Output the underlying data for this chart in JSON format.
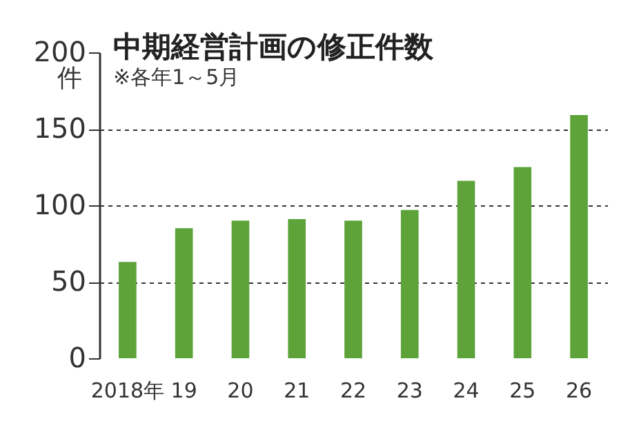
{
  "chart_data": {
    "type": "bar",
    "title": "中期経営計画の修正件数",
    "annotations": [
      "※各年1～5月"
    ],
    "ylabel": "件",
    "categories": [
      "2018年",
      "19",
      "20",
      "21",
      "22",
      "23",
      "24",
      "25",
      "26"
    ],
    "values": [
      63,
      85,
      90,
      91,
      90,
      97,
      116,
      125,
      159
    ],
    "color": "#5ea33a",
    "ylim": [
      0,
      200
    ],
    "yticks": [
      0,
      50,
      100,
      150,
      200
    ],
    "grid": "y"
  }
}
